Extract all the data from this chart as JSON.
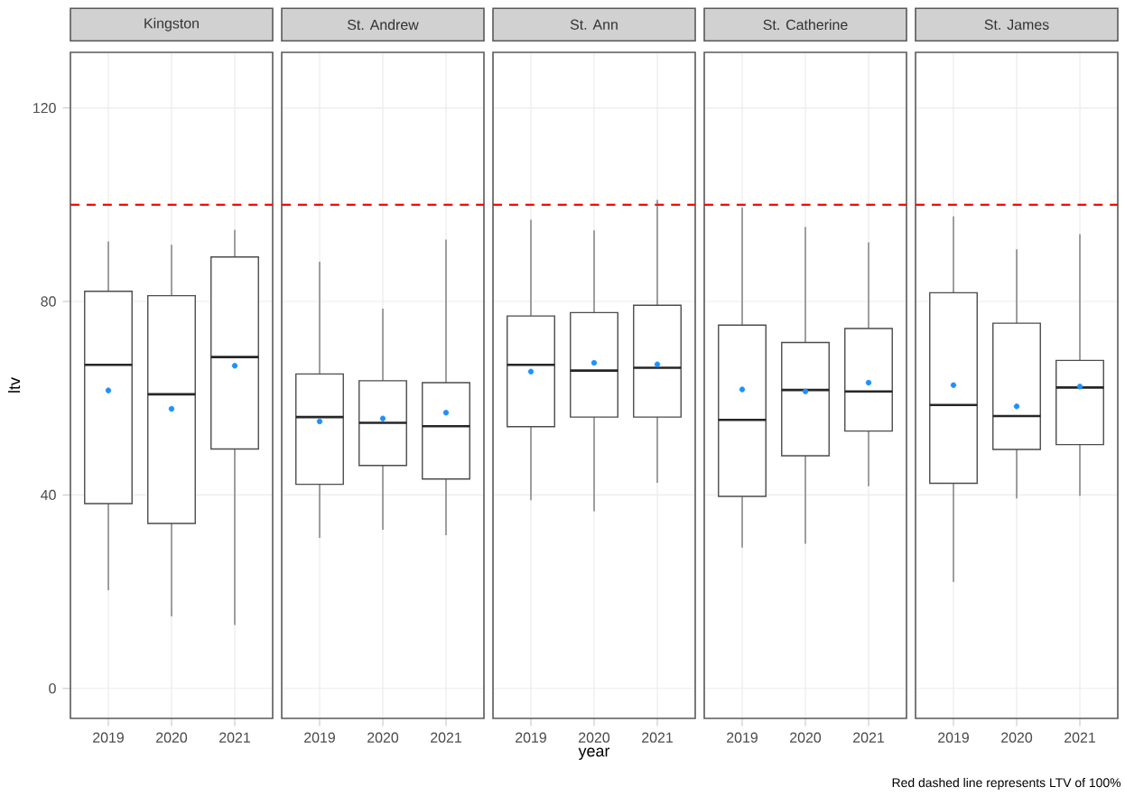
{
  "chart_data": [
    {
      "type": "box",
      "title": "Kingston",
      "ylabel": "ltv",
      "categories": [
        "2019",
        "2020",
        "2021"
      ],
      "ylim": [
        -6.2,
        131.5
      ],
      "yticks": [
        0,
        40,
        80,
        120
      ],
      "grid": true,
      "ref_lines": [
        {
          "axis": "y",
          "value": 100,
          "color": "#ff0000",
          "line_style": "dashed"
        }
      ],
      "boxes": [
        {
          "low": 20.3,
          "q1": 38.2,
          "median": 66.9,
          "q3": 82.1,
          "high": 92.4,
          "mean": 61.6
        },
        {
          "low": 14.9,
          "q1": 34.1,
          "median": 60.8,
          "q3": 81.2,
          "high": 91.7,
          "mean": 57.8
        },
        {
          "low": 13.1,
          "q1": 49.5,
          "median": 68.5,
          "q3": 89.2,
          "high": 94.8,
          "mean": 66.7
        }
      ]
    },
    {
      "type": "box",
      "title": "St. Andrew",
      "categories": [
        "2019",
        "2020",
        "2021"
      ],
      "ylim": [
        -6.2,
        131.5
      ],
      "yticks": [
        0,
        40,
        80,
        120
      ],
      "grid": true,
      "tick_labels": "x",
      "ref_lines": [
        {
          "axis": "y",
          "value": 100,
          "color": "#ff0000",
          "line_style": "dashed"
        }
      ],
      "boxes": [
        {
          "low": 31.1,
          "q1": 42.2,
          "median": 56.1,
          "q3": 65.0,
          "high": 88.2,
          "mean": 55.2
        },
        {
          "low": 32.8,
          "q1": 46.1,
          "median": 54.9,
          "q3": 63.6,
          "high": 78.5,
          "mean": 55.8
        },
        {
          "low": 31.7,
          "q1": 43.3,
          "median": 54.2,
          "q3": 63.2,
          "high": 92.8,
          "mean": 57.0
        }
      ]
    },
    {
      "type": "box",
      "title": "St. Ann",
      "xlabel": "year",
      "categories": [
        "2019",
        "2020",
        "2021"
      ],
      "ylim": [
        -6.2,
        131.5
      ],
      "yticks": [
        0,
        40,
        80,
        120
      ],
      "grid": true,
      "tick_labels": "x",
      "ref_lines": [
        {
          "axis": "y",
          "value": 100,
          "color": "#ff0000",
          "line_style": "dashed"
        }
      ],
      "boxes": [
        {
          "low": 38.9,
          "q1": 54.1,
          "median": 66.9,
          "q3": 77.0,
          "high": 96.9,
          "mean": 65.5
        },
        {
          "low": 36.6,
          "q1": 56.1,
          "median": 65.7,
          "q3": 77.7,
          "high": 94.7,
          "mean": 67.3
        },
        {
          "low": 42.5,
          "q1": 56.1,
          "median": 66.3,
          "q3": 79.2,
          "high": 101.0,
          "mean": 67.0
        }
      ]
    },
    {
      "type": "box",
      "title": "St. Catherine",
      "categories": [
        "2019",
        "2020",
        "2021"
      ],
      "ylim": [
        -6.2,
        131.5
      ],
      "yticks": [
        0,
        40,
        80,
        120
      ],
      "grid": true,
      "tick_labels": "x",
      "ref_lines": [
        {
          "axis": "y",
          "value": 100,
          "color": "#ff0000",
          "line_style": "dashed"
        }
      ],
      "boxes": [
        {
          "low": 29.1,
          "q1": 39.7,
          "median": 55.5,
          "q3": 75.1,
          "high": 99.4,
          "mean": 61.8
        },
        {
          "low": 29.9,
          "q1": 48.1,
          "median": 61.7,
          "q3": 71.5,
          "high": 95.4,
          "mean": 61.4
        },
        {
          "low": 41.8,
          "q1": 53.2,
          "median": 61.4,
          "q3": 74.4,
          "high": 92.2,
          "mean": 63.2
        }
      ]
    },
    {
      "type": "box",
      "title": "St. James",
      "categories": [
        "2019",
        "2020",
        "2021"
      ],
      "ylim": [
        -6.2,
        131.5
      ],
      "yticks": [
        0,
        40,
        80,
        120
      ],
      "grid": true,
      "tick_labels": "x",
      "ref_lines": [
        {
          "axis": "y",
          "value": 100,
          "color": "#ff0000",
          "line_style": "dashed"
        }
      ],
      "annotations": [
        "Red dashed line represents LTV of 100%"
      ],
      "boxes": [
        {
          "low": 22.0,
          "q1": 42.4,
          "median": 58.6,
          "q3": 81.8,
          "high": 97.6,
          "mean": 62.7
        },
        {
          "low": 39.3,
          "q1": 49.4,
          "median": 56.3,
          "q3": 75.5,
          "high": 90.8,
          "mean": 58.3
        },
        {
          "low": 39.8,
          "q1": 50.4,
          "median": 62.2,
          "q3": 67.8,
          "high": 93.9,
          "mean": 62.4
        }
      ]
    }
  ]
}
